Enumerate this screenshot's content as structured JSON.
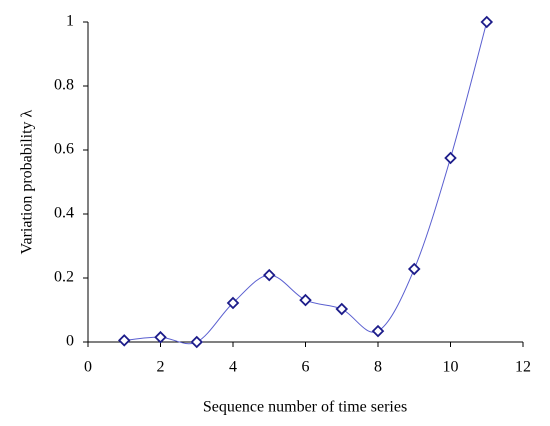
{
  "chart_data": {
    "type": "scatter",
    "x_label": "Sequence number of time series",
    "y_label": "Variation probability λ",
    "x": [
      1,
      2,
      3,
      4,
      5,
      6,
      7,
      8,
      9,
      10,
      11
    ],
    "values": [
      0.005,
      0.015,
      0.0,
      0.122,
      0.209,
      0.131,
      0.103,
      0.034,
      0.228,
      0.575,
      1.0
    ],
    "line_color": "#5a5fd0",
    "marker_color": "#1c1c8a",
    "smooth": true,
    "xlim": [
      0,
      12
    ],
    "xticks": [
      0,
      2,
      4,
      6,
      8,
      10,
      12
    ],
    "ylim": [
      0,
      1
    ],
    "yticks": [
      0,
      0.2,
      0.4,
      0.6,
      0.8,
      1
    ],
    "grid": false
  }
}
